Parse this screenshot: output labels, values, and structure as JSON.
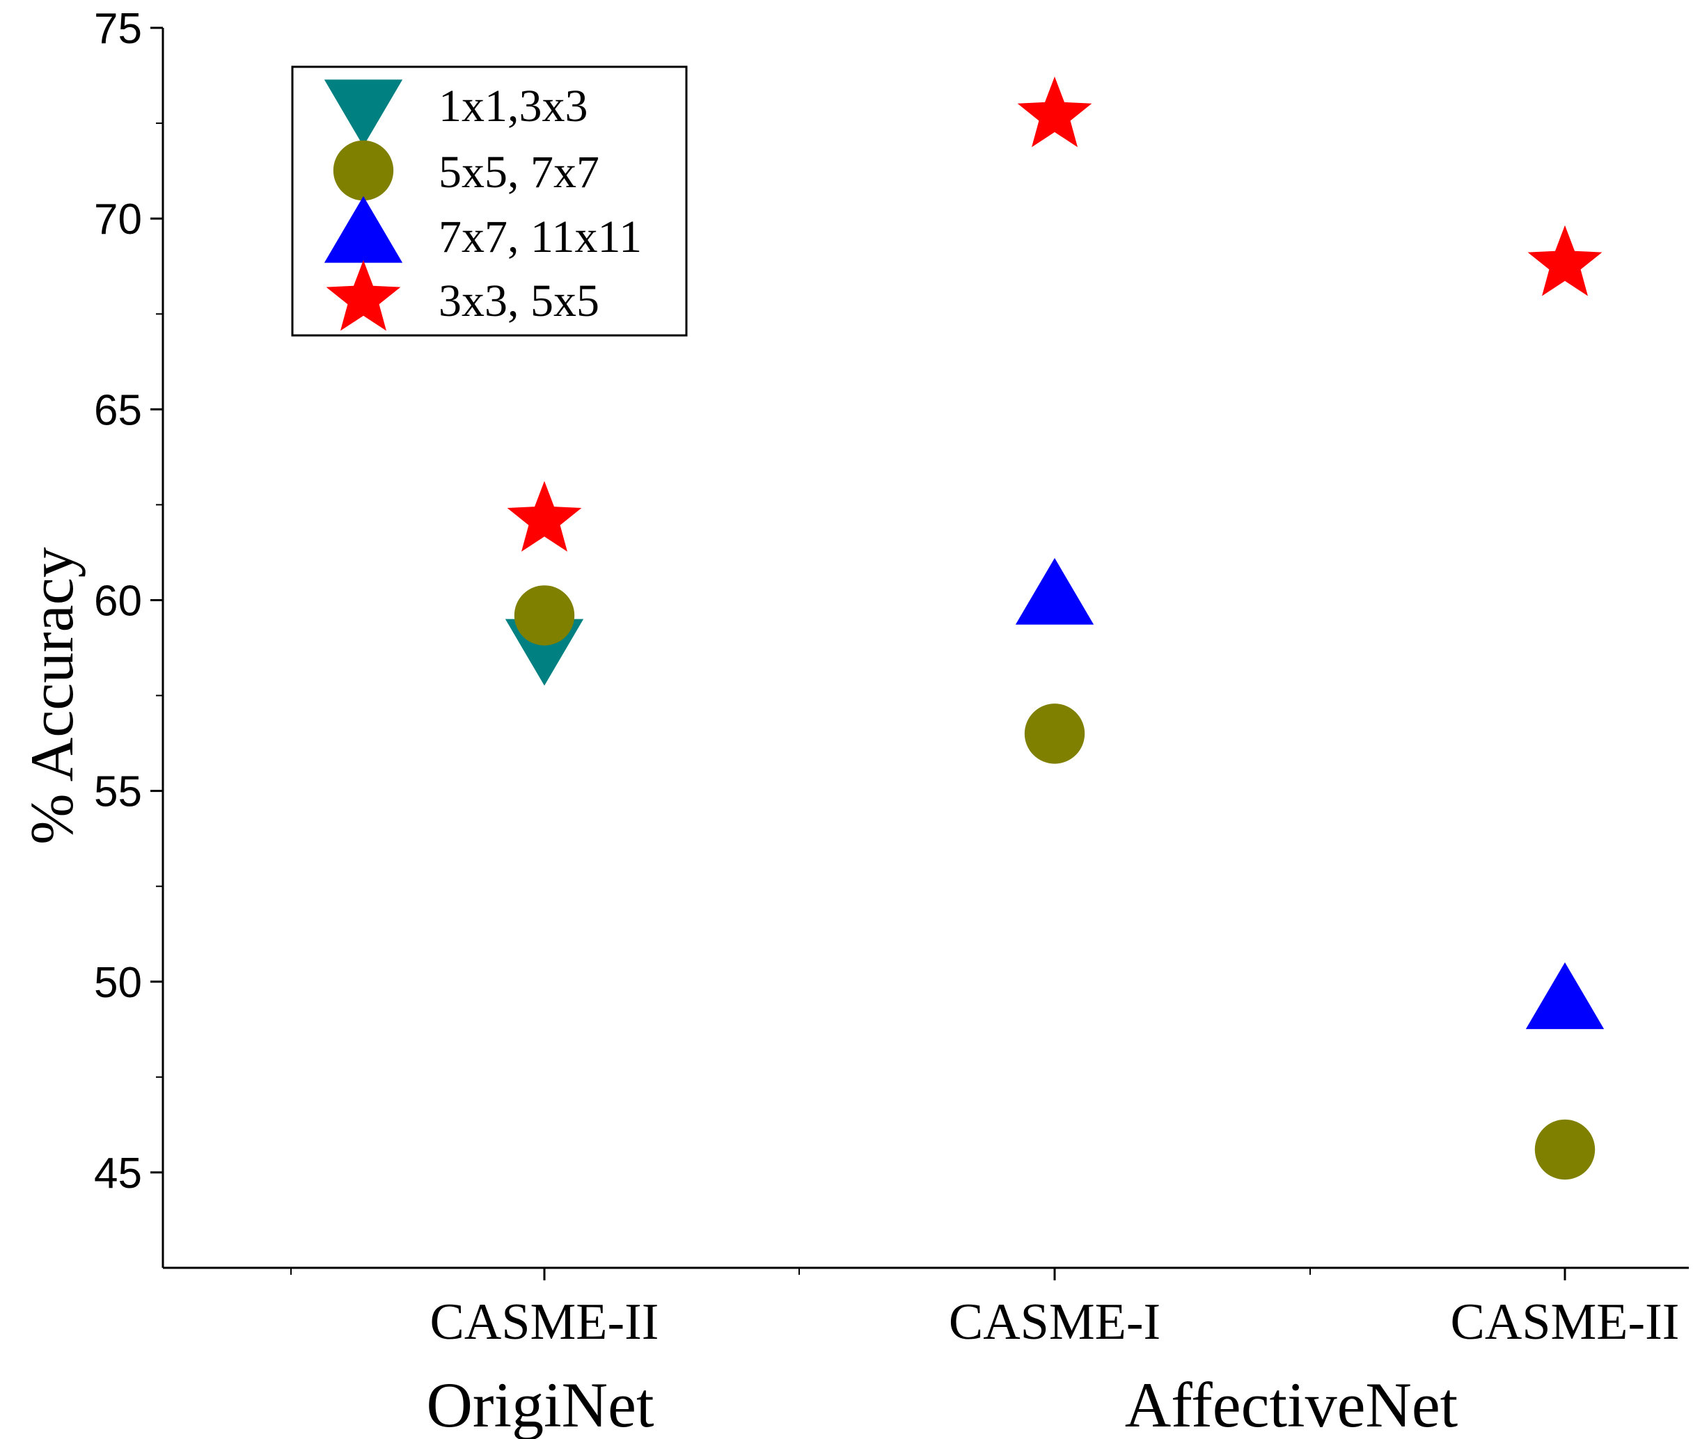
{
  "chart_data": {
    "type": "scatter",
    "title": "",
    "xlabel": "",
    "ylabel": "% Accuracy",
    "ylim": [
      42.5,
      75
    ],
    "yticks": [
      45,
      50,
      55,
      60,
      65,
      70,
      75
    ],
    "categories": [
      "CASME-II",
      "CASME-I",
      "CASME-II"
    ],
    "groups": [
      {
        "label": "OrigiNet",
        "categories": [
          0
        ]
      },
      {
        "label": "AffectiveNet",
        "categories": [
          1,
          2
        ]
      }
    ],
    "legend_position": "top-left",
    "series": [
      {
        "name": "1x1,3x3",
        "marker": "triangle-down",
        "color": "#008080",
        "values": [
          58.6,
          null,
          null
        ]
      },
      {
        "name": "5x5, 7x7",
        "marker": "circle",
        "color": "#808000",
        "values": [
          59.6,
          56.5,
          45.6
        ]
      },
      {
        "name": "7x7, 11x11",
        "marker": "triangle-up",
        "color": "#0000ff",
        "values": [
          null,
          60.3,
          49.7
        ]
      },
      {
        "name": "3x3, 5x5",
        "marker": "star",
        "color": "#ff0000",
        "values": [
          62.1,
          72.7,
          68.8
        ]
      }
    ]
  }
}
